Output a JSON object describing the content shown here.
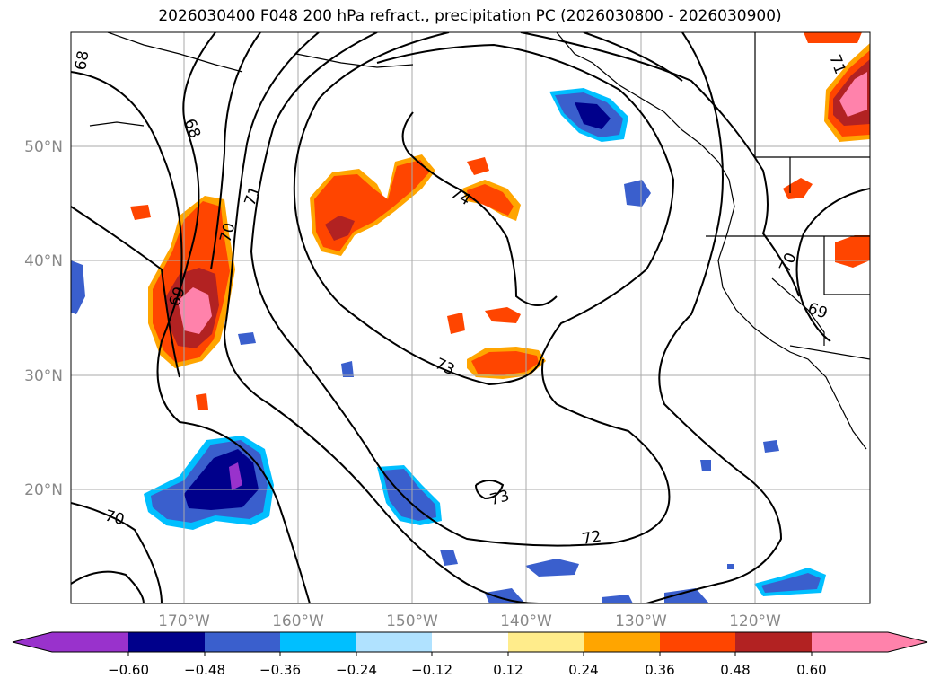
{
  "title": "2026030400 F048 200 hPa refract., precipitation PC (2026030800 - 2026030900)",
  "lat_labels": [
    "50°N",
    "40°N",
    "30°N",
    "20°N"
  ],
  "lon_labels": [
    "170°W",
    "160°W",
    "150°W",
    "140°W",
    "130°W",
    "120°W"
  ],
  "contour_labels": [
    "68",
    "68",
    "71",
    "70",
    "69",
    "74",
    "73",
    "73",
    "72",
    "70",
    "70",
    "69",
    "71"
  ],
  "colorbar": {
    "ticks": [
      "−0.60",
      "−0.48",
      "−0.36",
      "−0.24",
      "−0.12",
      "0.12",
      "0.24",
      "0.36",
      "0.48",
      "0.60"
    ],
    "colors": [
      "#9932CC",
      "#00008B",
      "#3A5FCD",
      "#00BFFF",
      "#B0E2FF",
      "#FFFFFF",
      "#FFEC8B",
      "#FFA500",
      "#FF4500",
      "#B22222",
      "#FF82AB"
    ]
  }
}
